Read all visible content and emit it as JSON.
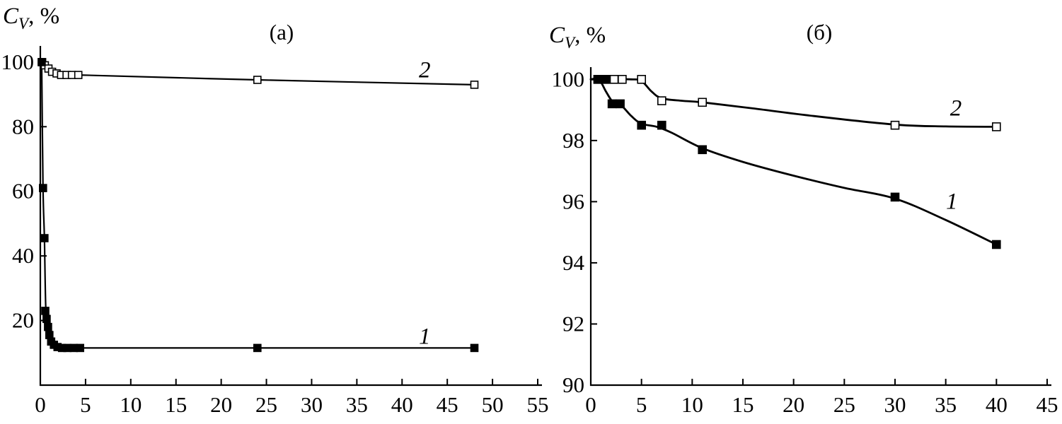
{
  "page": {
    "background": "#ffffff",
    "ink": "#000000"
  },
  "chart_data": [
    {
      "id": "a",
      "type": "line",
      "title": "(a)",
      "ylabel": {
        "prefix": "C",
        "sub": "V",
        "suffix": ", %"
      },
      "xlim": [
        0,
        55
      ],
      "ylim": [
        0,
        105
      ],
      "xticks": [
        0,
        5,
        10,
        15,
        20,
        25,
        30,
        35,
        40,
        45,
        50,
        55
      ],
      "yticks": [
        20,
        40,
        60,
        80,
        100
      ],
      "series": [
        {
          "name": "2",
          "marker": "open-square",
          "points": {
            "x": [
              0.2,
              0.5,
              0.9,
              1.3,
              1.8,
              2.3,
              2.9,
              3.5,
              4.2,
              24,
              48
            ],
            "y": [
              100,
              99,
              98,
              97,
              96.5,
              96,
              96,
              96,
              96,
              94.5,
              93
            ]
          },
          "curve": {
            "x": [
              0.2,
              0.9,
              1.8,
              3.0,
              4.2,
              24,
              48
            ],
            "y": [
              100,
              98,
              96.5,
              96,
              96,
              94.5,
              93
            ]
          }
        },
        {
          "name": "1",
          "marker": "filled-square",
          "points": {
            "x": [
              0.15,
              0.3,
              0.45,
              0.55,
              0.7,
              0.85,
              1.0,
              1.2,
              1.5,
              1.9,
              2.4,
              3.0,
              3.7,
              4.4,
              24,
              48
            ],
            "y": [
              100,
              61,
              45.5,
              23,
              20.5,
              18,
              15.5,
              13.5,
              12.5,
              11.8,
              11.5,
              11.5,
              11.5,
              11.5,
              11.5,
              11.5
            ]
          },
          "curve": {
            "x": [
              0.15,
              0.3,
              0.45,
              0.6,
              0.8,
              1.1,
              1.5,
              2.2,
              3.0,
              4.4,
              24,
              48
            ],
            "y": [
              100,
              61,
              45.5,
              24,
              19,
              15,
              12.8,
              11.7,
              11.5,
              11.5,
              11.5,
              11.5
            ]
          }
        }
      ],
      "annotations": [
        {
          "text": "2",
          "x": 42.5,
          "y": 97.5
        },
        {
          "text": "1",
          "x": 42.5,
          "y": 15
        }
      ]
    },
    {
      "id": "b",
      "type": "line",
      "title": "(б)",
      "ylabel": {
        "prefix": "C",
        "sub": "V",
        "suffix": ", %"
      },
      "xlim": [
        0,
        45
      ],
      "ylim": [
        90,
        100.4
      ],
      "xticks": [
        0,
        5,
        10,
        15,
        20,
        25,
        30,
        35,
        40,
        45
      ],
      "yticks": [
        90,
        92,
        94,
        96,
        98,
        100
      ],
      "series": [
        {
          "name": "2",
          "marker": "open-square",
          "points": {
            "x": [
              0.7,
              1.5,
              2.3,
              3.1,
              5,
              7,
              11,
              30,
              40
            ],
            "y": [
              100,
              100,
              100,
              100,
              100,
              99.3,
              99.25,
              98.5,
              98.45
            ]
          },
          "curve": {
            "x": [
              0,
              2,
              4,
              5,
              6,
              7,
              9,
              11,
              16,
              22,
              30,
              35,
              40
            ],
            "y": [
              100,
              100,
              100,
              99.95,
              99.6,
              99.38,
              99.3,
              99.25,
              99.05,
              98.8,
              98.52,
              98.46,
              98.45
            ]
          }
        },
        {
          "name": "1",
          "marker": "filled-square",
          "points": {
            "x": [
              0.7,
              1.4,
              2.1,
              2.9,
              5,
              7,
              11,
              30,
              40
            ],
            "y": [
              100,
              100,
              99.2,
              99.2,
              98.5,
              98.5,
              97.7,
              96.15,
              94.6
            ]
          },
          "curve": {
            "x": [
              0,
              0.8,
              1.5,
              2.2,
              3,
              4,
              5,
              6.5,
              8,
              11,
              15,
              20,
              25,
              30,
              35,
              40
            ],
            "y": [
              100,
              100,
              99.6,
              99.25,
              99.15,
              98.8,
              98.55,
              98.45,
              98.25,
              97.75,
              97.3,
              96.85,
              96.45,
              96.1,
              95.4,
              94.6
            ]
          }
        }
      ],
      "annotations": [
        {
          "text": "2",
          "x": 36,
          "y": 99.05
        },
        {
          "text": "1",
          "x": 35.6,
          "y": 96.0
        }
      ]
    }
  ]
}
